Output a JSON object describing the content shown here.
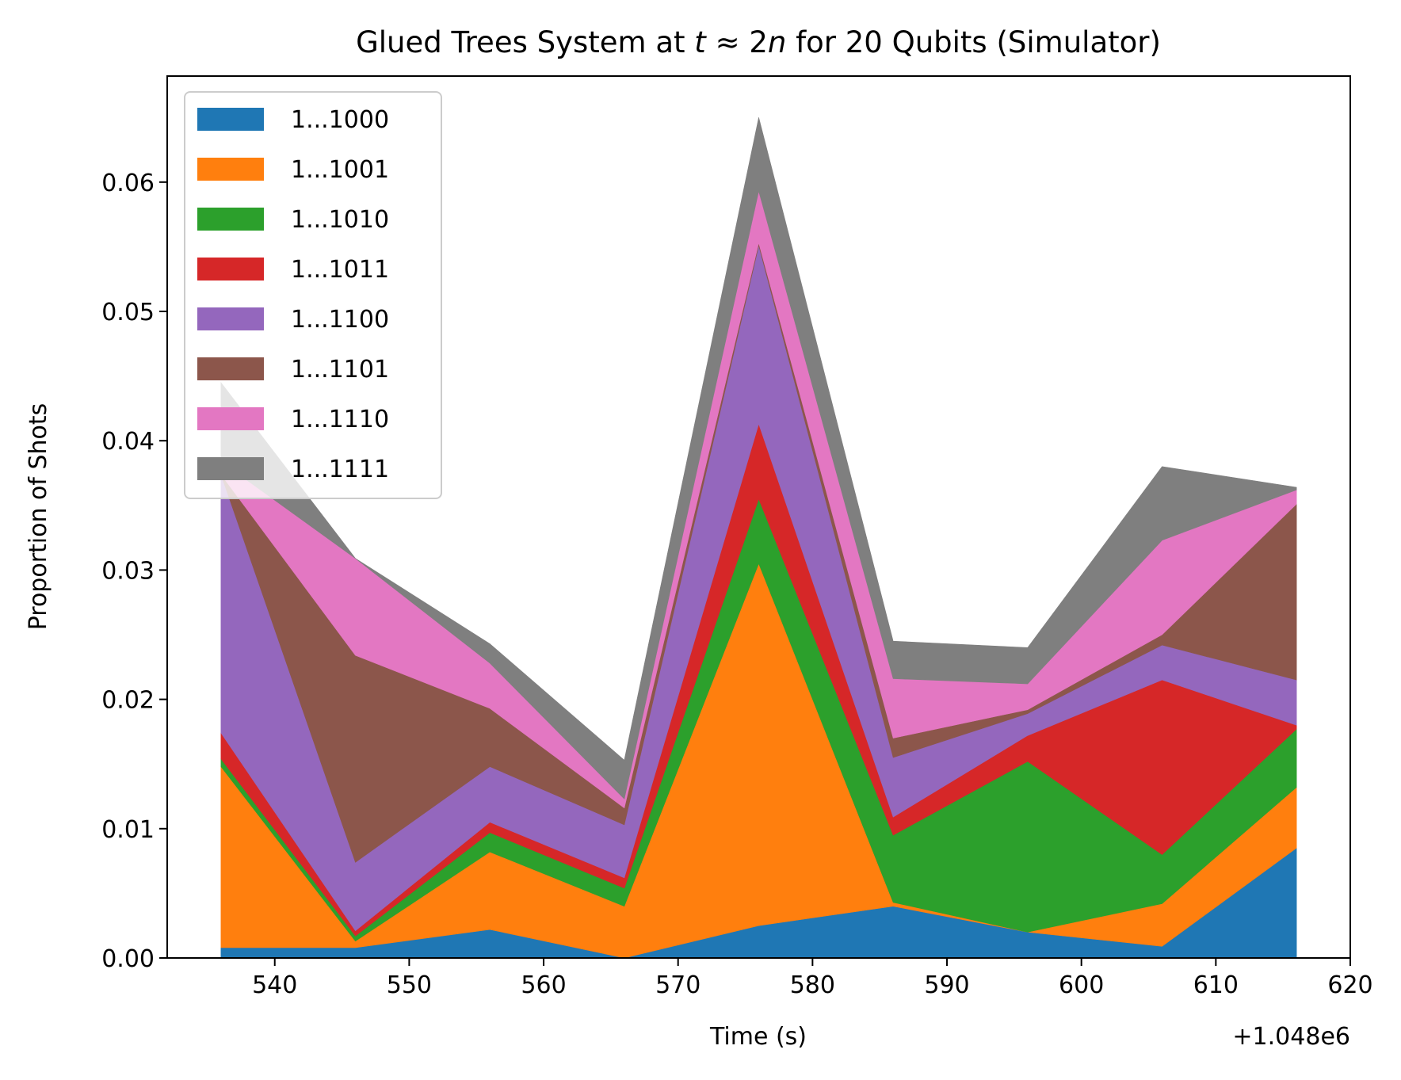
{
  "chart_data": {
    "type": "area",
    "title_parts": {
      "before": "Glued Trees System at ",
      "t": "t",
      "approx": " ≈ 2",
      "n": "n",
      "after": " for 20 Qubits (Simulator)"
    },
    "xlabel": "Time (s)",
    "ylabel": "Proportion of Shots",
    "x_offset_label": "+1.048e6",
    "xlim": [
      532,
      620
    ],
    "ylim": [
      0,
      0.0682
    ],
    "xticks": [
      540,
      550,
      560,
      570,
      580,
      590,
      600,
      610,
      620
    ],
    "yticks": [
      0.0,
      0.01,
      0.02,
      0.03,
      0.04,
      0.05,
      0.06
    ],
    "ytick_labels": [
      "0.00",
      "0.01",
      "0.02",
      "0.03",
      "0.04",
      "0.05",
      "0.06"
    ],
    "x": [
      536,
      546,
      556,
      566,
      576,
      586,
      596,
      606,
      616
    ],
    "stacked": true,
    "grid": false,
    "legend_position": "top-left",
    "series": [
      {
        "name": "1...1000",
        "color": "#1f77b4",
        "values": [
          0.0008,
          0.0008,
          0.0022,
          0.0,
          0.0025,
          0.004,
          0.002,
          0.0009,
          0.0085
        ]
      },
      {
        "name": "1...1001",
        "color": "#ff7f0e",
        "values": [
          0.014,
          0.0005,
          0.006,
          0.004,
          0.028,
          0.0003,
          0.0,
          0.0033,
          0.0047
        ]
      },
      {
        "name": "1...1010",
        "color": "#2ca02c",
        "values": [
          0.0006,
          0.0004,
          0.0015,
          0.0014,
          0.005,
          0.0052,
          0.0132,
          0.0038,
          0.0045
        ]
      },
      {
        "name": "1...1011",
        "color": "#d62728",
        "values": [
          0.002,
          0.0004,
          0.0008,
          0.0008,
          0.0058,
          0.0014,
          0.002,
          0.0135,
          0.0003
        ]
      },
      {
        "name": "1...1100",
        "color": "#9467bd",
        "values": [
          0.02,
          0.0053,
          0.0043,
          0.0041,
          0.0138,
          0.0046,
          0.0017,
          0.0027,
          0.0035
        ]
      },
      {
        "name": "1...1101",
        "color": "#8c564b",
        "values": [
          0.0,
          0.016,
          0.0045,
          0.0013,
          0.0002,
          0.0015,
          0.0003,
          0.0008,
          0.0136
        ]
      },
      {
        "name": "1...1110",
        "color": "#e377c2",
        "values": [
          0.001,
          0.0075,
          0.0035,
          0.0007,
          0.004,
          0.0046,
          0.002,
          0.0073,
          0.0011
        ]
      },
      {
        "name": "1...1111",
        "color": "#7f7f7f",
        "values": [
          0.0061,
          0.0,
          0.0015,
          0.003,
          0.0057,
          0.0029,
          0.0028,
          0.0057,
          0.0002
        ]
      }
    ]
  }
}
